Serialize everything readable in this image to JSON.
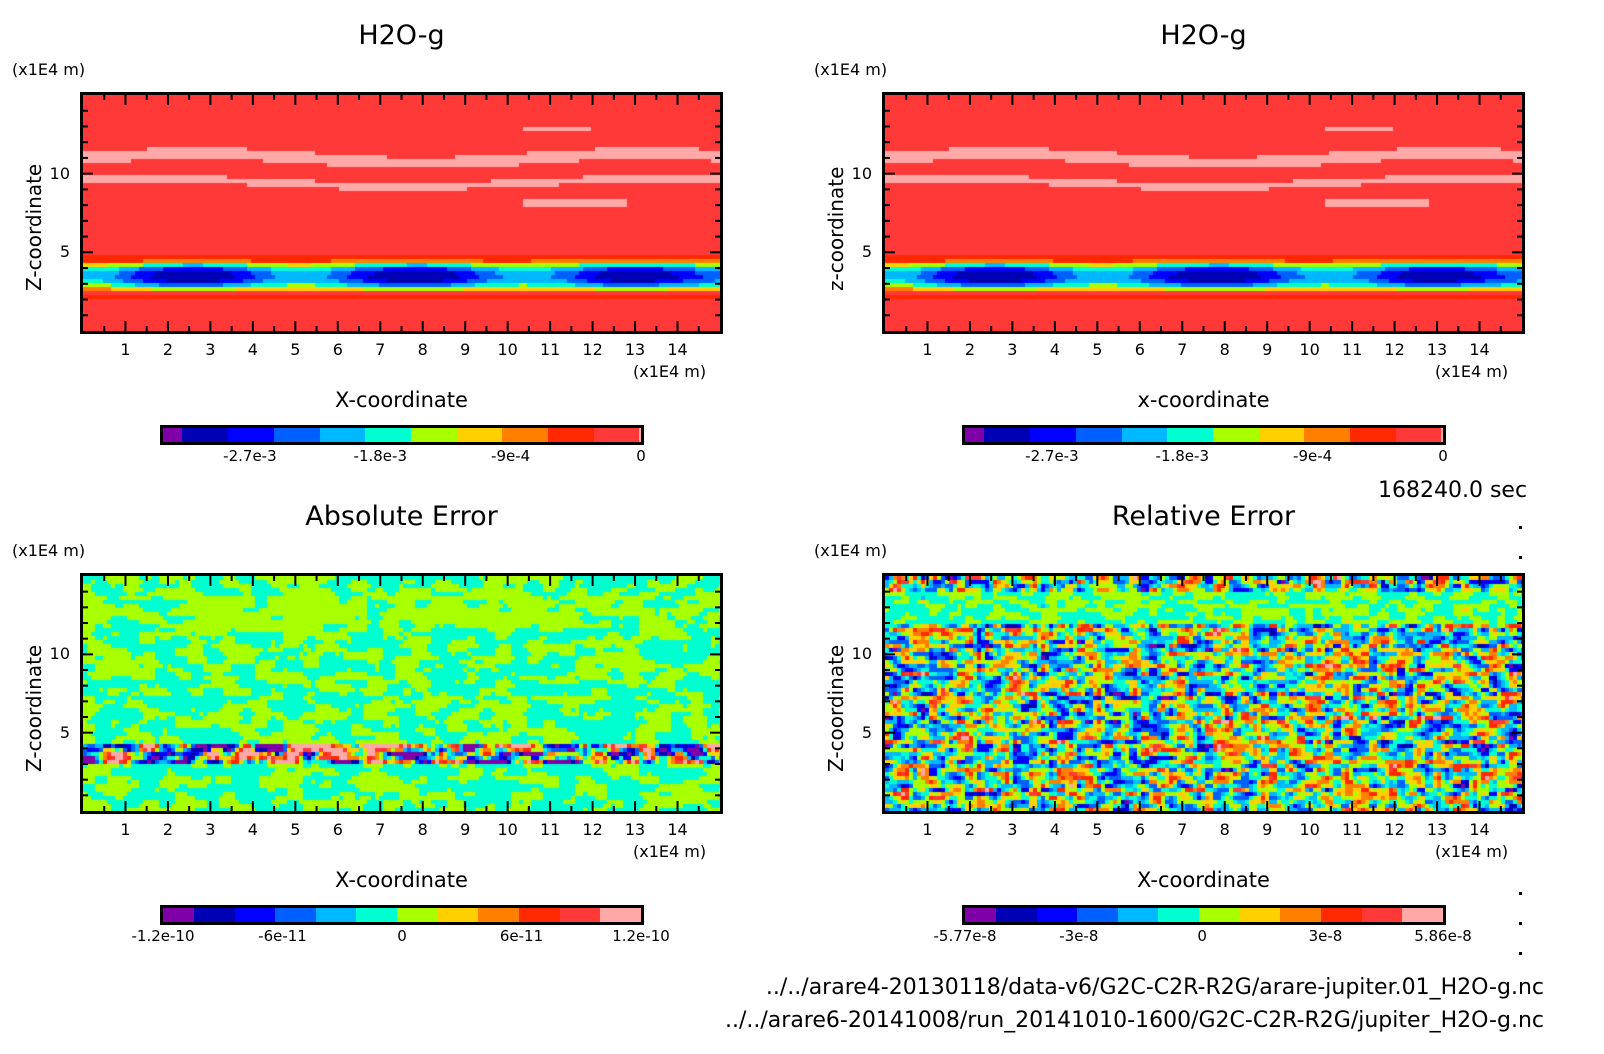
{
  "palette": [
    "#8000a8",
    "#0000b4",
    "#0000ff",
    "#0060ff",
    "#00b8ff",
    "#00ffd0",
    "#a8ff00",
    "#ffd000",
    "#ff8000",
    "#ff2800",
    "#ff3838",
    "#ffa8a8"
  ],
  "time_label": "168240.0 sec",
  "file_paths": [
    "../../arare4-20130118/data-v6/G2C-C2R-R2G/arare-jupiter.01_H2O-g.nc",
    "../../arare6-20141008/run_20141010-1600/G2C-C2R-R2G/jupiter_H2O-g.nc"
  ],
  "chart_data": [
    {
      "type": "heatmap",
      "title": "H2O-g",
      "xlabel": "X-coordinate",
      "ylabel": "Z-coordinate",
      "x_unit": "(x1E4 m)",
      "y_unit": "(x1E4 m)",
      "xlim": [
        0,
        15
      ],
      "ylim": [
        0,
        15
      ],
      "xticks": [
        "1",
        "2",
        "3",
        "4",
        "5",
        "6",
        "7",
        "8",
        "9",
        "10",
        "11",
        "12",
        "13",
        "14"
      ],
      "yticks": [
        "5",
        "10"
      ],
      "colorbar": {
        "levels": 11,
        "range": [
          -0.0033,
          0
        ],
        "tick_labels": [
          "-2.7e-3",
          "-1.8e-3",
          "-9e-4",
          "0"
        ],
        "tick_values": [
          -0.0027,
          -0.0018,
          -0.0009,
          0
        ]
      },
      "pattern": "field",
      "description": "Uniform near-zero field with a strongly negative layer centered near z=3.9, minimum around x=2.5 and x=7.5; thin lighter bands near z=9.8, 11.2 and 8.5"
    },
    {
      "type": "heatmap",
      "title": "H2O-g",
      "xlabel": "x-coordinate",
      "ylabel": "z-coordinate",
      "x_unit": "(x1E4 m)",
      "y_unit": "(x1E4 m)",
      "xlim": [
        0,
        15
      ],
      "ylim": [
        0,
        15
      ],
      "xticks": [
        "1",
        "2",
        "3",
        "4",
        "5",
        "6",
        "7",
        "8",
        "9",
        "10",
        "11",
        "12",
        "13",
        "14"
      ],
      "yticks": [
        "5",
        "10"
      ],
      "colorbar": {
        "levels": 11,
        "range": [
          -0.0033,
          0
        ],
        "tick_labels": [
          "-2.7e-3",
          "-1.8e-3",
          "-9e-4",
          "0"
        ],
        "tick_values": [
          -0.0027,
          -0.0018,
          -0.0009,
          0
        ]
      },
      "pattern": "field",
      "description": "Same as left panel"
    },
    {
      "type": "heatmap",
      "title": "Absolute Error",
      "xlabel": "X-coordinate",
      "ylabel": "Z-coordinate",
      "x_unit": "(x1E4 m)",
      "y_unit": "(x1E4 m)",
      "xlim": [
        0,
        15
      ],
      "ylim": [
        0,
        15
      ],
      "xticks": [
        "1",
        "2",
        "3",
        "4",
        "5",
        "6",
        "7",
        "8",
        "9",
        "10",
        "11",
        "12",
        "13",
        "14"
      ],
      "yticks": [
        "5",
        "10"
      ],
      "colorbar": {
        "levels": 12,
        "range": [
          -1.2e-10,
          1.2e-10
        ],
        "tick_labels": [
          "-1.2e-10",
          "-6e-11",
          "0",
          "6e-11",
          "1.2e-10"
        ],
        "tick_values": [
          -1.2e-10,
          -6e-11,
          0,
          6e-11,
          1.2e-10
        ]
      },
      "pattern": "abs-noise",
      "description": "Near-zero noise everywhere; larger +/- errors in thin band around z=4"
    },
    {
      "type": "heatmap",
      "title": "Relative Error",
      "xlabel": "X-coordinate",
      "ylabel": "Z-coordinate",
      "x_unit": "(x1E4 m)",
      "y_unit": "(x1E4 m)",
      "xlim": [
        0,
        15
      ],
      "ylim": [
        0,
        15
      ],
      "xticks": [
        "1",
        "2",
        "3",
        "4",
        "5",
        "6",
        "7",
        "8",
        "9",
        "10",
        "11",
        "12",
        "13",
        "14"
      ],
      "yticks": [
        "5",
        "10"
      ],
      "colorbar": {
        "levels": 12,
        "range": [
          -5.77e-08,
          5.86e-08
        ],
        "tick_labels": [
          "-5.77e-8",
          "-3e-8",
          "0",
          "3e-8",
          "5.86e-8"
        ],
        "tick_values": [
          -5.77e-08,
          -3e-08,
          0,
          3e-08,
          5.86e-08
        ]
      },
      "pattern": "rel-noise",
      "description": "Full-range noise everywhere; calmer band near z=12.5-14"
    }
  ]
}
